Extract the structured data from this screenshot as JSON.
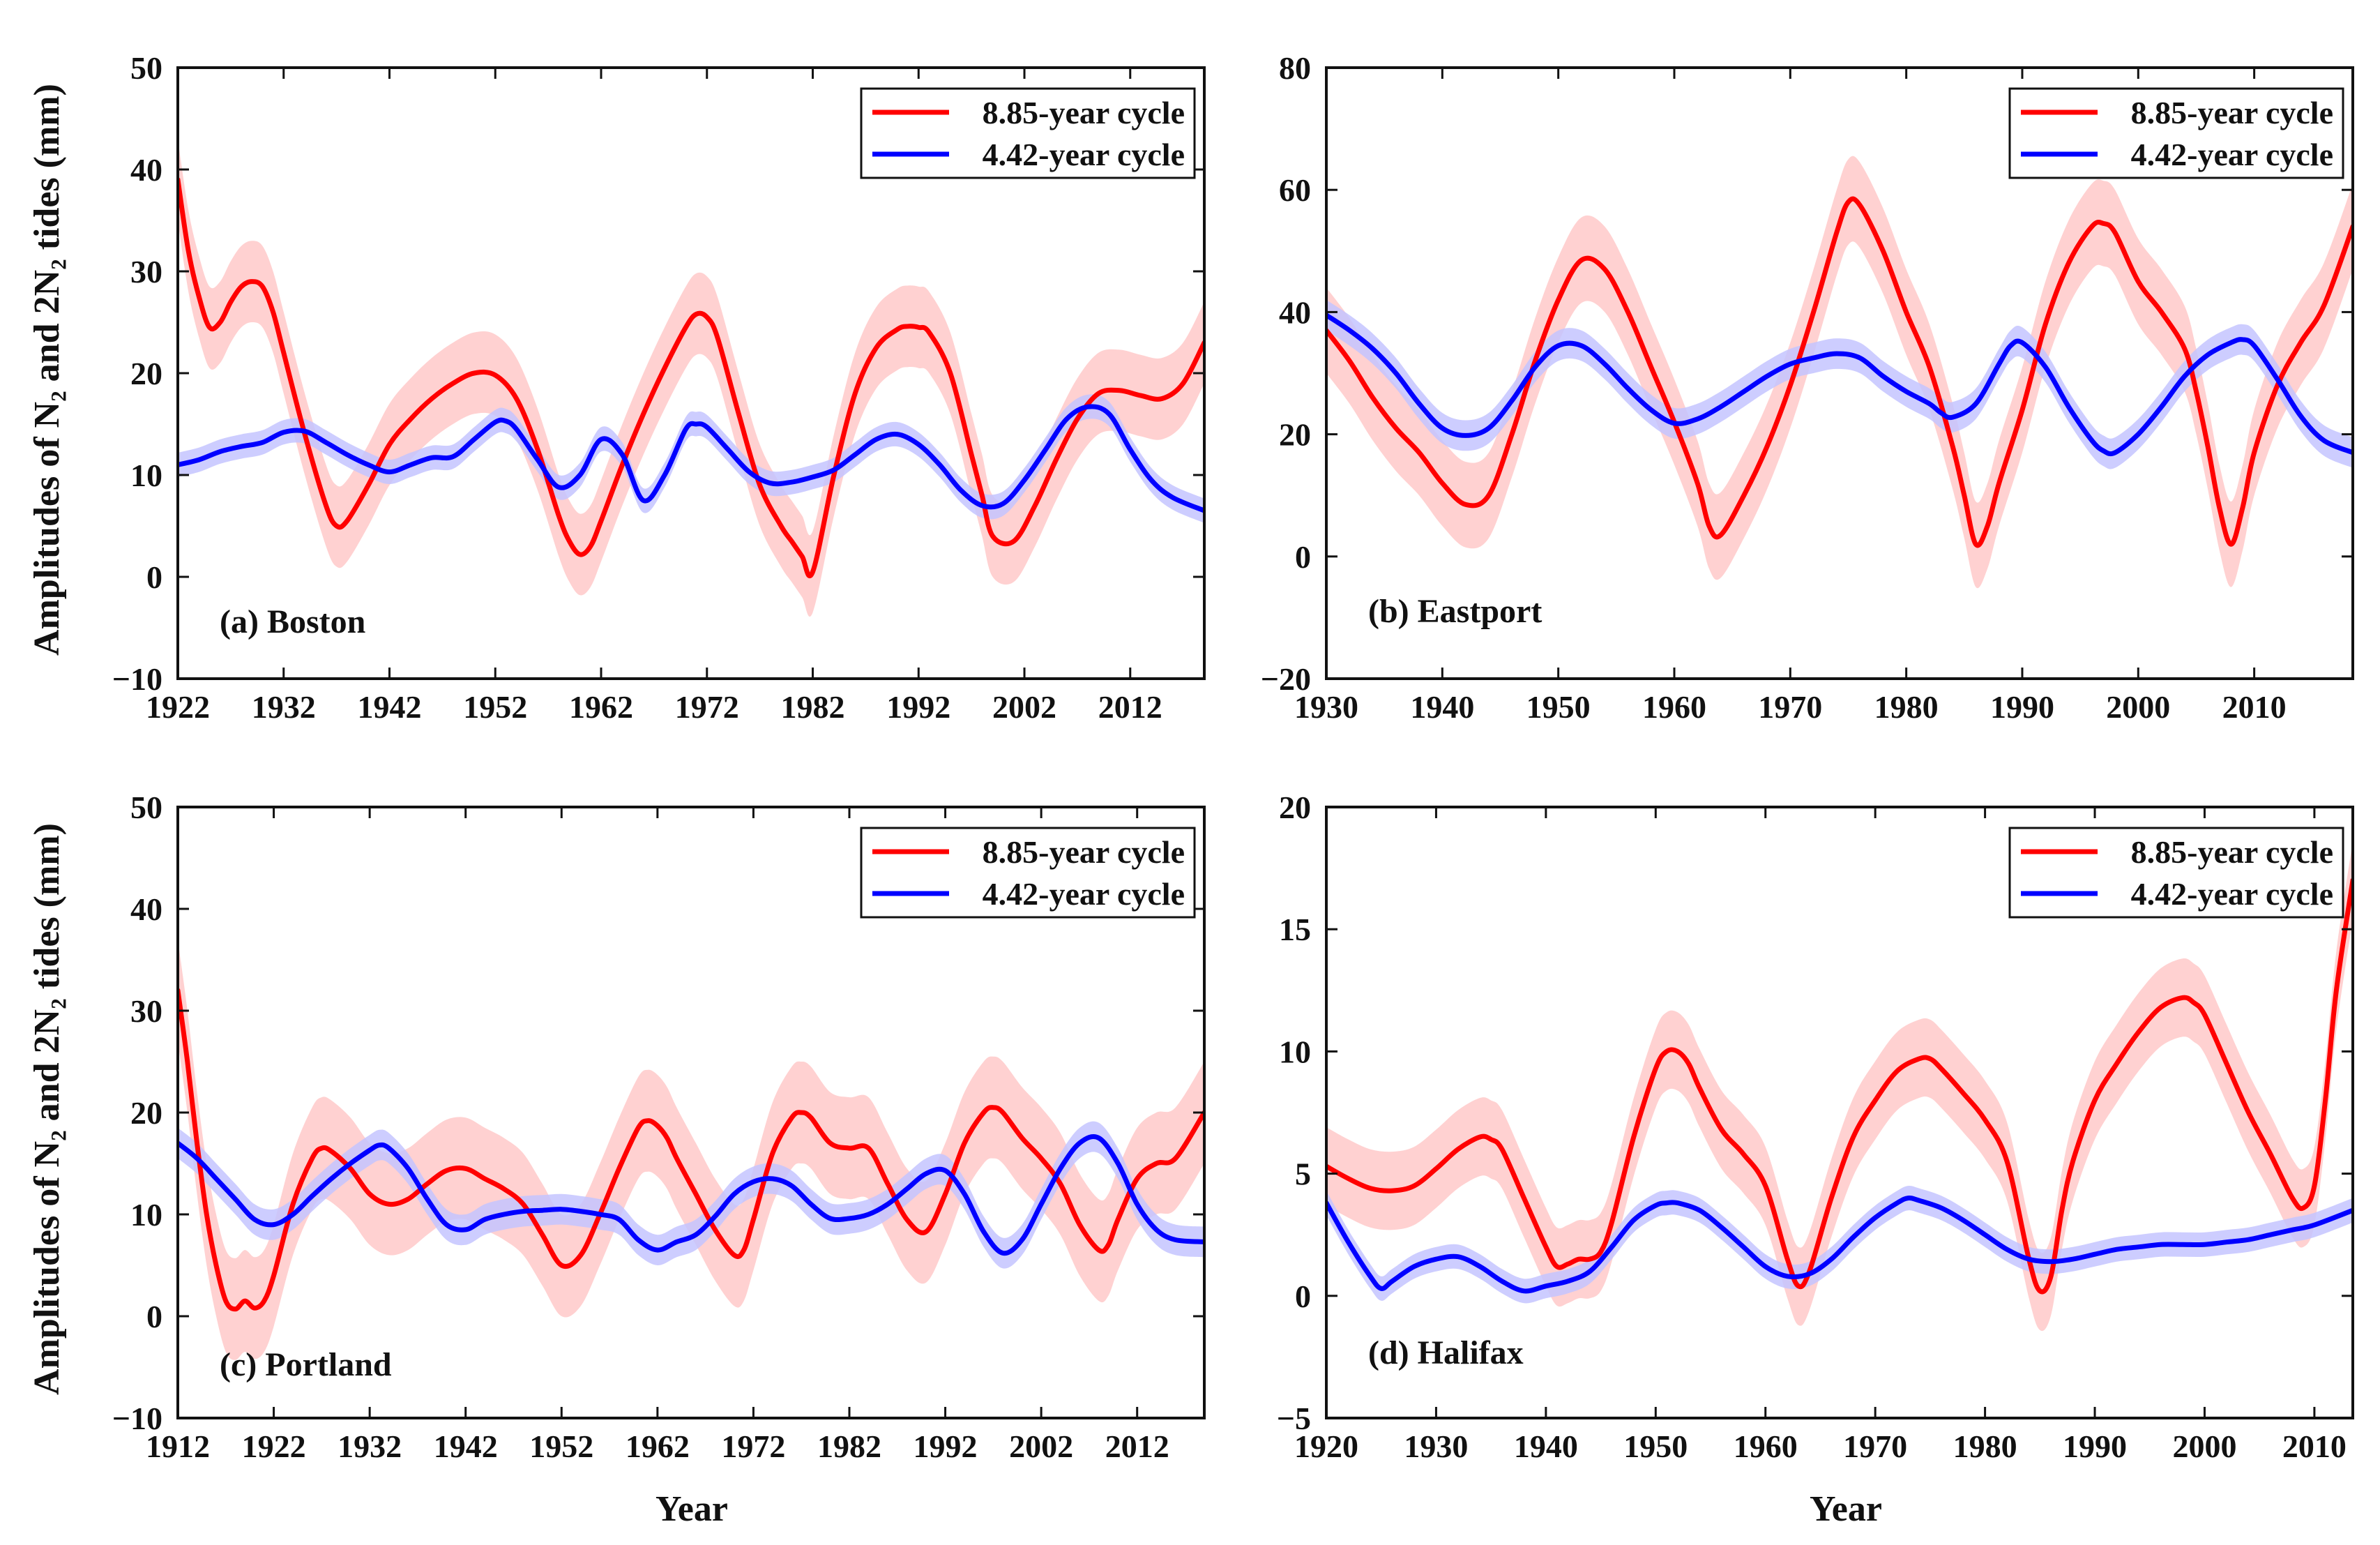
{
  "figure": {
    "ylabel": "Amplitudes of N₂ and 2N₂ tides (mm)",
    "xlabel": "Year",
    "colors": {
      "cycle_885": "#ff0000",
      "band_885": "#ffc9c9",
      "cycle_442": "#0000ff",
      "band_442": "#c4c4ff"
    }
  },
  "legend": {
    "series_885": "8.85-year cycle",
    "series_442": "4.42-year cycle"
  },
  "chart_data": [
    {
      "type": "line",
      "title": "(a) Boston",
      "xlabel": "",
      "ylabel": "Amplitudes of N₂ and 2N₂ tides (mm)",
      "xlim": [
        1922,
        2019
      ],
      "ylim": [
        -10,
        50
      ],
      "xticks": [
        1922,
        1932,
        1942,
        1952,
        1962,
        1972,
        1982,
        1992,
        2002,
        2012
      ],
      "yticks": [
        -10,
        0,
        10,
        20,
        30,
        40,
        50
      ],
      "series": [
        {
          "name": "8.85-year cycle",
          "band": 4,
          "x": [
            1922,
            1923,
            1924,
            1925,
            1926,
            1927,
            1928,
            1929,
            1930,
            1931,
            1932,
            1934,
            1936,
            1937,
            1938,
            1940,
            1942,
            1944,
            1946,
            1948,
            1950,
            1952,
            1954,
            1956,
            1958,
            1959,
            1960,
            1961,
            1962,
            1964,
            1966,
            1968,
            1970,
            1971,
            1972,
            1973,
            1975,
            1977,
            1979,
            1980,
            1981,
            1982,
            1984,
            1986,
            1988,
            1990,
            1991,
            1992,
            1993,
            1995,
            1997,
            1998,
            1999,
            2001,
            2003,
            2005,
            2007,
            2009,
            2011,
            2013,
            2015,
            2017,
            2019
          ],
          "values": [
            39,
            32,
            27.5,
            24.5,
            25,
            27,
            28.5,
            29,
            28.5,
            26,
            22,
            14,
            7,
            5,
            5.5,
            9,
            13,
            15.5,
            17.5,
            19,
            20,
            19.8,
            17.5,
            12.5,
            6,
            3.5,
            2.2,
            3,
            5.5,
            11,
            16,
            20.5,
            24.5,
            25.8,
            25.5,
            23.5,
            16,
            9,
            5,
            3.5,
            2,
            0.5,
            10,
            18,
            22.5,
            24.3,
            24.6,
            24.5,
            24,
            20,
            12,
            8,
            4,
            3.5,
            7,
            11.5,
            15.5,
            18,
            18.3,
            17.8,
            17.5,
            19,
            23
          ]
        },
        {
          "name": "4.42-year cycle",
          "band": 1.2,
          "x": [
            1922,
            1924,
            1926,
            1928,
            1930,
            1932,
            1934,
            1936,
            1938,
            1940,
            1942,
            1944,
            1946,
            1948,
            1950,
            1952,
            1953,
            1954,
            1956,
            1958,
            1960,
            1962,
            1964,
            1966,
            1968,
            1970,
            1971,
            1972,
            1974,
            1976,
            1978,
            1980,
            1982,
            1984,
            1986,
            1988,
            1990,
            1992,
            1994,
            1996,
            1998,
            2000,
            2002,
            2004,
            2006,
            2008,
            2010,
            2012,
            2014,
            2016,
            2019
          ],
          "values": [
            11,
            11.5,
            12.3,
            12.8,
            13.2,
            14.2,
            14.3,
            13.2,
            12,
            11,
            10.3,
            11,
            11.7,
            11.8,
            13.5,
            15.2,
            15.3,
            14.5,
            11.5,
            8.8,
            10,
            13.5,
            12,
            7.5,
            10,
            14.5,
            15,
            14.7,
            12.5,
            10.3,
            9.2,
            9.3,
            9.8,
            10.5,
            12,
            13.5,
            14,
            13,
            11,
            8.5,
            7,
            7.2,
            9.5,
            12.5,
            15.5,
            16.7,
            16,
            12.5,
            9.5,
            7.8,
            6.5
          ]
        }
      ]
    },
    {
      "type": "line",
      "title": "(b) Eastport",
      "xlabel": "",
      "ylabel": "",
      "xlim": [
        1930,
        2018.5
      ],
      "ylim": [
        -20,
        80
      ],
      "xticks": [
        1930,
        1940,
        1950,
        1960,
        1970,
        1980,
        1990,
        2000,
        2010
      ],
      "yticks": [
        -20,
        0,
        20,
        40,
        60,
        80
      ],
      "series": [
        {
          "name": "8.85-year cycle",
          "band": 7,
          "x": [
            1930,
            1932,
            1934,
            1936,
            1938,
            1940,
            1942,
            1944,
            1946,
            1948,
            1950,
            1952,
            1954,
            1956,
            1958,
            1960,
            1962,
            1963,
            1964,
            1966,
            1968,
            1970,
            1972,
            1974,
            1975,
            1976,
            1978,
            1980,
            1982,
            1984,
            1985,
            1986,
            1987,
            1988,
            1990,
            1992,
            1994,
            1996,
            1997,
            1998,
            2000,
            2002,
            2004,
            2005,
            2006,
            2007,
            2008,
            2009,
            2010,
            2012,
            2014,
            2016,
            2018.5
          ],
          "values": [
            37,
            32,
            26,
            21,
            17,
            12,
            8.5,
            10,
            20,
            32,
            42,
            48.5,
            47,
            40,
            31,
            22,
            12,
            5,
            3.5,
            10,
            18,
            28,
            40,
            53,
            58,
            57.5,
            50,
            40,
            31,
            18,
            10,
            2,
            5,
            12,
            24,
            38,
            48,
            54,
            54.5,
            53,
            45,
            40,
            34,
            27,
            18,
            8,
            2,
            8,
            17,
            28,
            35,
            41,
            54
          ]
        },
        {
          "name": "4.42-year cycle",
          "band": 2.5,
          "x": [
            1930,
            1932,
            1934,
            1936,
            1938,
            1940,
            1942,
            1944,
            1946,
            1948,
            1950,
            1952,
            1954,
            1956,
            1958,
            1960,
            1962,
            1964,
            1966,
            1968,
            1970,
            1972,
            1974,
            1976,
            1978,
            1980,
            1982,
            1983,
            1984,
            1986,
            1988,
            1989,
            1990,
            1992,
            1994,
            1996,
            1997,
            1998,
            2000,
            2002,
            2004,
            2006,
            2008,
            2009,
            2010,
            2012,
            2014,
            2016,
            2018.5
          ],
          "values": [
            39.5,
            37,
            34,
            30,
            25,
            21,
            19.8,
            21,
            25.5,
            31,
            34.5,
            34.5,
            31.5,
            27.5,
            24,
            21.8,
            22.5,
            24.5,
            27,
            29.5,
            31.5,
            32.5,
            33.2,
            32.5,
            29.5,
            27,
            25,
            23.5,
            22.8,
            25,
            31.5,
            34.5,
            35,
            31,
            24.5,
            19,
            17.3,
            17,
            20,
            24.5,
            29.5,
            33,
            35,
            35.5,
            34.5,
            29,
            23,
            19,
            17
          ]
        }
      ]
    },
    {
      "type": "line",
      "title": "(c) Portland",
      "xlabel": "Year",
      "ylabel": "Amplitudes of N₂ and 2N₂ tides (mm)",
      "xlim": [
        1912,
        2019
      ],
      "ylim": [
        -10,
        50
      ],
      "xticks": [
        1912,
        1922,
        1932,
        1942,
        1952,
        1962,
        1972,
        1982,
        1992,
        2002,
        2012
      ],
      "yticks": [
        -10,
        0,
        10,
        20,
        30,
        40,
        50
      ],
      "series": [
        {
          "name": "8.85-year cycle",
          "band": 5,
          "x": [
            1912,
            1913,
            1914,
            1915,
            1916,
            1917,
            1918,
            1919,
            1920,
            1921,
            1922,
            1924,
            1926,
            1927,
            1928,
            1930,
            1932,
            1934,
            1936,
            1938,
            1940,
            1942,
            1944,
            1946,
            1948,
            1950,
            1952,
            1954,
            1956,
            1958,
            1960,
            1961,
            1962,
            1963,
            1964,
            1966,
            1968,
            1970,
            1971,
            1972,
            1974,
            1976,
            1977,
            1978,
            1980,
            1982,
            1984,
            1986,
            1988,
            1990,
            1992,
            1994,
            1996,
            1997,
            1998,
            2000,
            2002,
            2004,
            2006,
            2008,
            2009,
            2010,
            2012,
            2014,
            2016,
            2019
          ],
          "values": [
            32,
            25,
            17,
            10,
            5,
            1.5,
            0.7,
            1.5,
            0.8,
            1.5,
            4,
            11,
            15.5,
            16.5,
            16.2,
            14.5,
            12,
            11,
            11.5,
            13,
            14.3,
            14.5,
            13.5,
            12.5,
            11,
            8,
            5,
            6,
            10,
            14.5,
            18.5,
            19.2,
            18.7,
            17.5,
            15.5,
            12,
            8.5,
            6,
            6.5,
            9.5,
            16,
            19.5,
            20,
            19.5,
            17,
            16.5,
            16.5,
            13,
            9.5,
            8.3,
            12,
            17,
            20,
            20.5,
            20,
            17.5,
            15.5,
            13,
            9,
            6.5,
            7,
            9.5,
            13.5,
            15,
            15.5,
            20
          ]
        },
        {
          "name": "4.42-year cycle",
          "band": 1.5,
          "x": [
            1912,
            1914,
            1916,
            1918,
            1920,
            1922,
            1924,
            1926,
            1928,
            1930,
            1932,
            1933,
            1934,
            1936,
            1938,
            1940,
            1942,
            1944,
            1946,
            1948,
            1950,
            1952,
            1954,
            1956,
            1958,
            1960,
            1962,
            1964,
            1966,
            1968,
            1970,
            1972,
            1974,
            1976,
            1978,
            1980,
            1982,
            1984,
            1986,
            1988,
            1990,
            1992,
            1994,
            1996,
            1998,
            2000,
            2002,
            2004,
            2006,
            2008,
            2010,
            2012,
            2014,
            2016,
            2019
          ],
          "values": [
            17,
            15.5,
            13.5,
            11.5,
            9.5,
            9,
            10,
            11.8,
            13.5,
            15,
            16.3,
            16.8,
            16.5,
            14.5,
            11.5,
            9,
            8.5,
            9.5,
            10,
            10.3,
            10.4,
            10.5,
            10.3,
            10,
            9.5,
            7.5,
            6.5,
            7.3,
            8,
            9.8,
            12,
            13.2,
            13.5,
            12.8,
            11,
            9.6,
            9.6,
            10,
            11,
            12.5,
            14,
            14.3,
            12,
            8.3,
            6.2,
            7.5,
            11,
            14.5,
            17,
            17.5,
            15,
            11,
            8.5,
            7.5,
            7.3
          ]
        }
      ]
    },
    {
      "type": "line",
      "title": "(d) Halifax",
      "xlabel": "Year",
      "ylabel": "",
      "xlim": [
        1920,
        2013.5
      ],
      "ylim": [
        -5,
        20
      ],
      "xticks": [
        1920,
        1930,
        1940,
        1950,
        1960,
        1970,
        1980,
        1990,
        2000,
        2010
      ],
      "yticks": [
        -5,
        0,
        5,
        10,
        15,
        20
      ],
      "series": [
        {
          "name": "8.85-year cycle",
          "band": 1.6,
          "x": [
            1920,
            1922,
            1924,
            1926,
            1928,
            1930,
            1932,
            1934,
            1935,
            1936,
            1938,
            1940,
            1941,
            1942,
            1943,
            1944,
            1945,
            1946,
            1948,
            1950,
            1951,
            1952,
            1953,
            1954,
            1956,
            1958,
            1960,
            1962,
            1963,
            1964,
            1966,
            1968,
            1970,
            1972,
            1974,
            1975,
            1976,
            1978,
            1980,
            1982,
            1984,
            1985,
            1986,
            1987,
            1988,
            1990,
            1992,
            1994,
            1996,
            1998,
            1999,
            2000,
            2002,
            2004,
            2006,
            2008,
            2009,
            2010,
            2011,
            2012,
            2013.5
          ],
          "values": [
            5.3,
            4.8,
            4.4,
            4.3,
            4.5,
            5.2,
            6,
            6.5,
            6.4,
            6,
            4,
            2,
            1.2,
            1.3,
            1.5,
            1.5,
            1.8,
            3,
            6.5,
            9.3,
            10,
            10,
            9.5,
            8.5,
            6.8,
            5.8,
            4.5,
            1.5,
            0.4,
            1,
            4,
            6.5,
            8,
            9.2,
            9.7,
            9.7,
            9.3,
            8.3,
            7.2,
            5.5,
            1.5,
            0.2,
            0.8,
            3.5,
            5.5,
            8,
            9.5,
            10.8,
            11.8,
            12.2,
            12,
            11.5,
            9.5,
            7.5,
            5.8,
            4,
            3.6,
            4.5,
            8,
            12.5,
            17
          ]
        },
        {
          "name": "4.42-year cycle",
          "band": 0.5,
          "x": [
            1920,
            1922,
            1924,
            1925,
            1926,
            1928,
            1930,
            1932,
            1934,
            1936,
            1938,
            1940,
            1942,
            1944,
            1946,
            1948,
            1950,
            1951,
            1952,
            1954,
            1956,
            1958,
            1960,
            1962,
            1964,
            1966,
            1968,
            1970,
            1972,
            1973,
            1974,
            1976,
            1978,
            1980,
            1982,
            1984,
            1986,
            1988,
            1990,
            1992,
            1994,
            1996,
            1998,
            2000,
            2002,
            2004,
            2006,
            2008,
            2010,
            2013.5
          ],
          "values": [
            3.8,
            2.2,
            0.8,
            0.3,
            0.6,
            1.2,
            1.5,
            1.6,
            1.2,
            0.6,
            0.2,
            0.4,
            0.6,
            1,
            2,
            3.1,
            3.7,
            3.8,
            3.8,
            3.5,
            2.8,
            2,
            1.2,
            0.8,
            0.9,
            1.5,
            2.4,
            3.2,
            3.8,
            4,
            3.9,
            3.6,
            3.1,
            2.5,
            1.9,
            1.5,
            1.4,
            1.5,
            1.7,
            1.9,
            2,
            2.1,
            2.1,
            2.1,
            2.2,
            2.3,
            2.5,
            2.7,
            2.9,
            3.5
          ]
        }
      ]
    }
  ]
}
